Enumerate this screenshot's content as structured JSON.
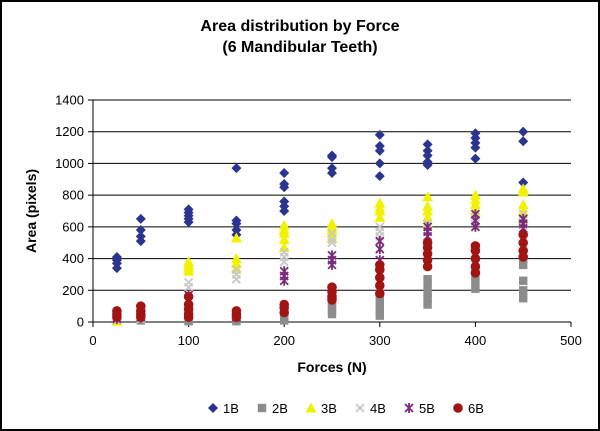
{
  "chart_data": {
    "type": "scatter",
    "title": "Area distribution by Force",
    "subtitle": "(6 Mandibular Teeth)",
    "xlabel": "Forces (N)",
    "ylabel": "Area (pixels)",
    "xlim": [
      0,
      500
    ],
    "ylim": [
      0,
      1400
    ],
    "xticks": [
      "0",
      "100",
      "200",
      "300",
      "400",
      "500"
    ],
    "yticks": [
      "0",
      "200",
      "400",
      "600",
      "800",
      "1000",
      "1200",
      "1400"
    ],
    "grid": "horizontal",
    "legend_position": "bottom",
    "series": [
      {
        "name": "1B",
        "marker": "diamond",
        "color": "#2b3590",
        "points": [
          [
            25,
            410
          ],
          [
            25,
            390
          ],
          [
            25,
            370
          ],
          [
            25,
            340
          ],
          [
            50,
            650
          ],
          [
            50,
            580
          ],
          [
            50,
            540
          ],
          [
            50,
            510
          ],
          [
            100,
            710
          ],
          [
            100,
            690
          ],
          [
            100,
            670
          ],
          [
            100,
            650
          ],
          [
            100,
            630
          ],
          [
            150,
            970
          ],
          [
            150,
            640
          ],
          [
            150,
            620
          ],
          [
            150,
            580
          ],
          [
            150,
            550
          ],
          [
            200,
            940
          ],
          [
            200,
            870
          ],
          [
            200,
            850
          ],
          [
            200,
            760
          ],
          [
            200,
            730
          ],
          [
            200,
            700
          ],
          [
            250,
            1050
          ],
          [
            250,
            1040
          ],
          [
            250,
            970
          ],
          [
            250,
            940
          ],
          [
            300,
            1180
          ],
          [
            300,
            1110
          ],
          [
            300,
            1080
          ],
          [
            300,
            1000
          ],
          [
            300,
            920
          ],
          [
            350,
            1120
          ],
          [
            350,
            1080
          ],
          [
            350,
            1050
          ],
          [
            350,
            1010
          ],
          [
            350,
            990
          ],
          [
            400,
            1190
          ],
          [
            400,
            1160
          ],
          [
            400,
            1130
          ],
          [
            400,
            1100
          ],
          [
            400,
            1030
          ],
          [
            450,
            1200
          ],
          [
            450,
            1140
          ],
          [
            450,
            880
          ]
        ]
      },
      {
        "name": "2B",
        "marker": "square",
        "color": "#8c8c8c",
        "points": [
          [
            25,
            20
          ],
          [
            25,
            5
          ],
          [
            50,
            30
          ],
          [
            50,
            10
          ],
          [
            100,
            10
          ],
          [
            100,
            5
          ],
          [
            150,
            20
          ],
          [
            150,
            5
          ],
          [
            200,
            60
          ],
          [
            200,
            30
          ],
          [
            200,
            10
          ],
          [
            250,
            180
          ],
          [
            250,
            140
          ],
          [
            250,
            110
          ],
          [
            250,
            80
          ],
          [
            250,
            50
          ],
          [
            300,
            180
          ],
          [
            300,
            140
          ],
          [
            300,
            100
          ],
          [
            300,
            70
          ],
          [
            300,
            40
          ],
          [
            350,
            270
          ],
          [
            350,
            230
          ],
          [
            350,
            180
          ],
          [
            350,
            150
          ],
          [
            350,
            110
          ],
          [
            400,
            330
          ],
          [
            400,
            290
          ],
          [
            400,
            250
          ],
          [
            400,
            210
          ],
          [
            450,
            400
          ],
          [
            450,
            360
          ],
          [
            450,
            260
          ],
          [
            450,
            200
          ],
          [
            450,
            150
          ]
        ]
      },
      {
        "name": "3B",
        "marker": "triangle",
        "color": "#f2f200",
        "points": [
          [
            25,
            5
          ],
          [
            100,
            380
          ],
          [
            100,
            360
          ],
          [
            100,
            340
          ],
          [
            100,
            320
          ],
          [
            150,
            530
          ],
          [
            150,
            400
          ],
          [
            150,
            370
          ],
          [
            150,
            340
          ],
          [
            200,
            610
          ],
          [
            200,
            580
          ],
          [
            200,
            560
          ],
          [
            200,
            520
          ],
          [
            200,
            470
          ],
          [
            250,
            620
          ],
          [
            250,
            600
          ],
          [
            250,
            580
          ],
          [
            250,
            560
          ],
          [
            250,
            530
          ],
          [
            300,
            750
          ],
          [
            300,
            720
          ],
          [
            300,
            700
          ],
          [
            300,
            660
          ],
          [
            350,
            790
          ],
          [
            350,
            730
          ],
          [
            350,
            700
          ],
          [
            350,
            660
          ],
          [
            350,
            620
          ],
          [
            400,
            800
          ],
          [
            400,
            770
          ],
          [
            400,
            740
          ],
          [
            400,
            700
          ],
          [
            400,
            680
          ],
          [
            450,
            840
          ],
          [
            450,
            820
          ],
          [
            450,
            740
          ],
          [
            450,
            700
          ],
          [
            450,
            650
          ]
        ]
      },
      {
        "name": "4B",
        "marker": "x",
        "color": "#c8c8c8",
        "points": [
          [
            25,
            10
          ],
          [
            50,
            20
          ],
          [
            100,
            250
          ],
          [
            100,
            220
          ],
          [
            150,
            330
          ],
          [
            150,
            300
          ],
          [
            150,
            270
          ],
          [
            200,
            440
          ],
          [
            200,
            410
          ],
          [
            200,
            380
          ],
          [
            250,
            560
          ],
          [
            250,
            520
          ],
          [
            250,
            500
          ],
          [
            300,
            600
          ],
          [
            300,
            570
          ],
          [
            300,
            540
          ],
          [
            350,
            620
          ],
          [
            350,
            600
          ],
          [
            350,
            570
          ],
          [
            400,
            660
          ],
          [
            400,
            630
          ],
          [
            400,
            600
          ],
          [
            400,
            360
          ],
          [
            450,
            680
          ],
          [
            450,
            640
          ],
          [
            450,
            610
          ],
          [
            450,
            420
          ]
        ]
      },
      {
        "name": "5B",
        "marker": "star",
        "color": "#7b2a7b",
        "points": [
          [
            25,
            20
          ],
          [
            50,
            30
          ],
          [
            100,
            170
          ],
          [
            100,
            140
          ],
          [
            150,
            30
          ],
          [
            200,
            320
          ],
          [
            200,
            290
          ],
          [
            200,
            260
          ],
          [
            250,
            420
          ],
          [
            250,
            390
          ],
          [
            250,
            360
          ],
          [
            300,
            510
          ],
          [
            300,
            460
          ],
          [
            300,
            390
          ],
          [
            350,
            600
          ],
          [
            350,
            570
          ],
          [
            350,
            540
          ],
          [
            400,
            680
          ],
          [
            400,
            640
          ],
          [
            400,
            600
          ],
          [
            450,
            650
          ],
          [
            450,
            620
          ],
          [
            450,
            590
          ]
        ]
      },
      {
        "name": "6B",
        "marker": "circle",
        "color": "#a11414",
        "points": [
          [
            25,
            70
          ],
          [
            25,
            50
          ],
          [
            25,
            30
          ],
          [
            50,
            100
          ],
          [
            50,
            70
          ],
          [
            50,
            50
          ],
          [
            50,
            30
          ],
          [
            100,
            160
          ],
          [
            100,
            110
          ],
          [
            100,
            80
          ],
          [
            100,
            50
          ],
          [
            100,
            30
          ],
          [
            150,
            70
          ],
          [
            150,
            50
          ],
          [
            150,
            30
          ],
          [
            200,
            110
          ],
          [
            200,
            90
          ],
          [
            200,
            60
          ],
          [
            250,
            220
          ],
          [
            250,
            190
          ],
          [
            250,
            160
          ],
          [
            250,
            140
          ],
          [
            300,
            360
          ],
          [
            300,
            330
          ],
          [
            300,
            280
          ],
          [
            300,
            230
          ],
          [
            300,
            180
          ],
          [
            350,
            500
          ],
          [
            350,
            470
          ],
          [
            350,
            430
          ],
          [
            350,
            390
          ],
          [
            350,
            350
          ],
          [
            400,
            480
          ],
          [
            400,
            450
          ],
          [
            400,
            400
          ],
          [
            400,
            350
          ],
          [
            400,
            310
          ],
          [
            450,
            550
          ],
          [
            450,
            500
          ],
          [
            450,
            450
          ],
          [
            450,
            410
          ]
        ]
      }
    ]
  }
}
